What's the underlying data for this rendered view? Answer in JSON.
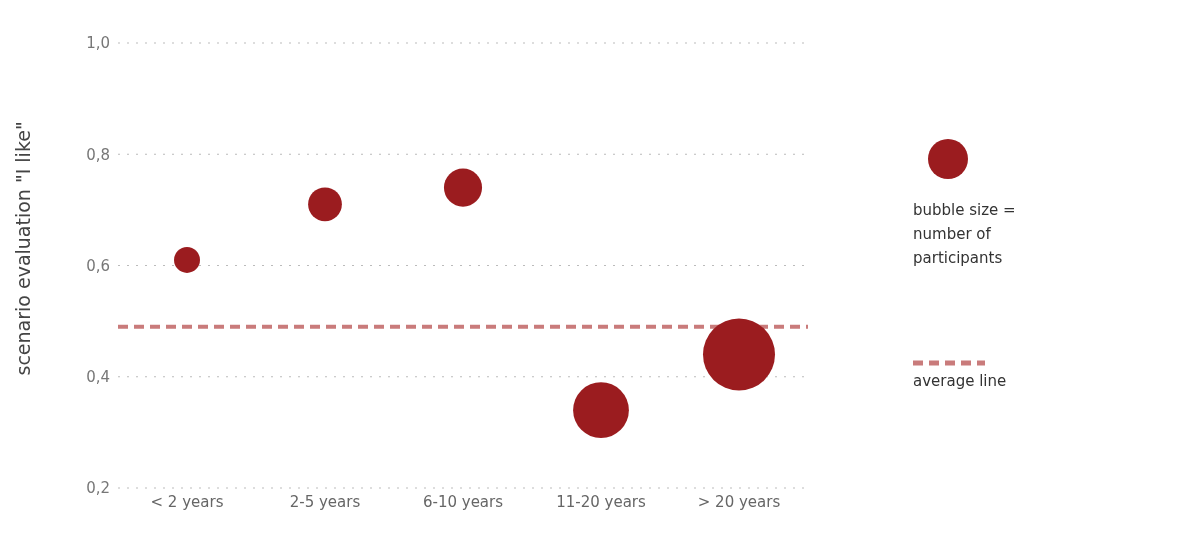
{
  "chart_data": {
    "type": "bubble",
    "ylabel": "scenario evaluation \"I like\"",
    "categories": [
      "< 2 years",
      "2-5 years",
      "6-10 years",
      "11-20 years",
      "> 20 years"
    ],
    "series": [
      {
        "color": "#9b1c1f",
        "values": [
          0.61,
          0.71,
          0.74,
          0.34,
          0.44
        ],
        "sizes": [
          0.13,
          0.22,
          0.28,
          0.6,
          1
        ]
      }
    ],
    "ylim": [
      0.2,
      1.0
    ],
    "yticks": [
      {
        "value": 0.2,
        "label": "0,2"
      },
      {
        "value": 0.4,
        "label": "0,4"
      },
      {
        "value": 0.6,
        "label": "0,6"
      },
      {
        "value": 0.8,
        "label": "0,8"
      },
      {
        "value": 1.0,
        "label": "1,0"
      }
    ],
    "ref_lines": [
      {
        "axis": "y",
        "value": 0.49,
        "label": "average line",
        "color": "#c97b7b",
        "line_style": "dashed"
      }
    ],
    "annotations": [
      "bubble size = number of participants"
    ],
    "grid": "y",
    "legend": "right",
    "marker": "circle"
  }
}
